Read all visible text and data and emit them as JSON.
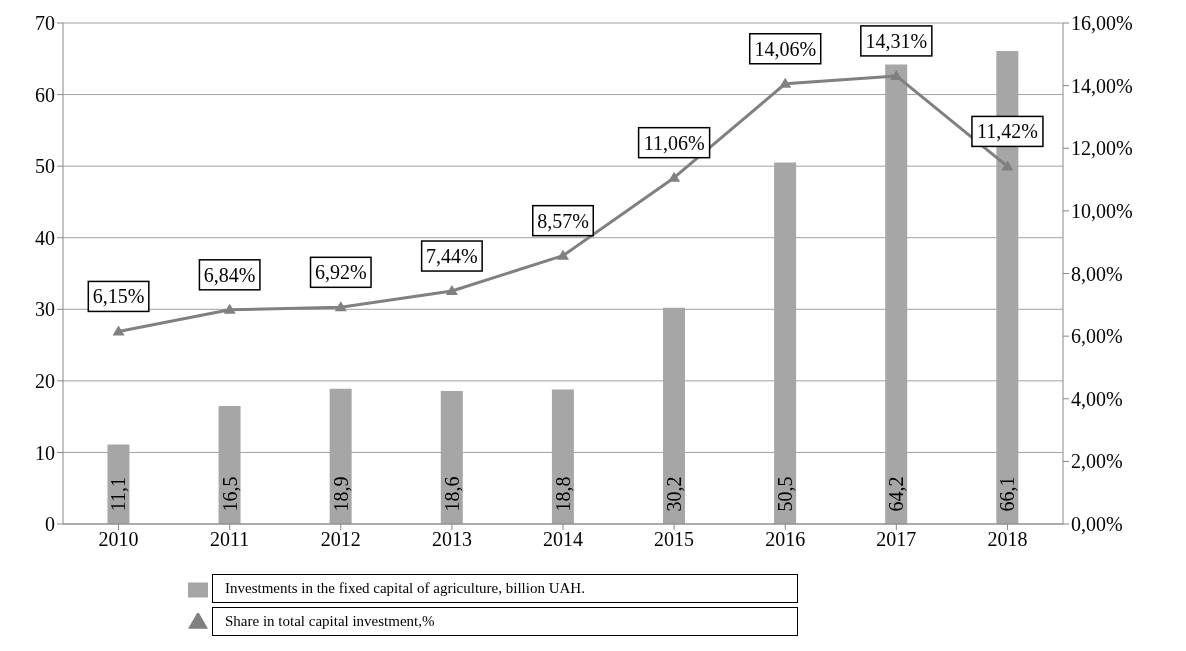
{
  "chart_data": {
    "type": "bar",
    "categories": [
      "2010",
      "2011",
      "2012",
      "2013",
      "2014",
      "2015",
      "2016",
      "2017",
      "2018"
    ],
    "series": [
      {
        "name": "Investments in the fixed capital of agriculture, billion UAH.",
        "color": "#a6a6a6",
        "values": [
          11.1,
          16.5,
          18.9,
          18.6,
          18.8,
          30.2,
          50.5,
          64.2,
          66.1
        ],
        "value_labels": [
          "11,1",
          "16,5",
          "18,9",
          "18,6",
          "18,8",
          "30,2",
          "50,5",
          "64,2",
          "66,1"
        ]
      },
      {
        "name": "Share in total capital investment,%",
        "type": "line",
        "axis": "y2",
        "color": "#808080",
        "marker": "triangle",
        "values": [
          6.15,
          6.84,
          6.92,
          7.44,
          8.57,
          11.06,
          14.06,
          14.31,
          11.42
        ],
        "value_labels": [
          "6,15%",
          "6,84%",
          "6,92%",
          "7,44%",
          "8,57%",
          "11,06%",
          "14,06%",
          "14,31%",
          "11,42%"
        ]
      }
    ],
    "ylim": [
      0,
      70
    ],
    "yticks": [
      0,
      10,
      20,
      30,
      40,
      50,
      60,
      70
    ],
    "y2lim": [
      0,
      16
    ],
    "y2ticks": [
      {
        "value": 0,
        "label": "0,00%"
      },
      {
        "value": 2,
        "label": "2,00%"
      },
      {
        "value": 4,
        "label": "4,00%"
      },
      {
        "value": 6,
        "label": "6,00%"
      },
      {
        "value": 8,
        "label": "8,00%"
      },
      {
        "value": 10,
        "label": "10,00%"
      },
      {
        "value": 12,
        "label": "12,00%"
      },
      {
        "value": 14,
        "label": "14,00%"
      },
      {
        "value": 16,
        "label": "16,00%"
      }
    ],
    "grid": "y",
    "legend": "bottom"
  }
}
